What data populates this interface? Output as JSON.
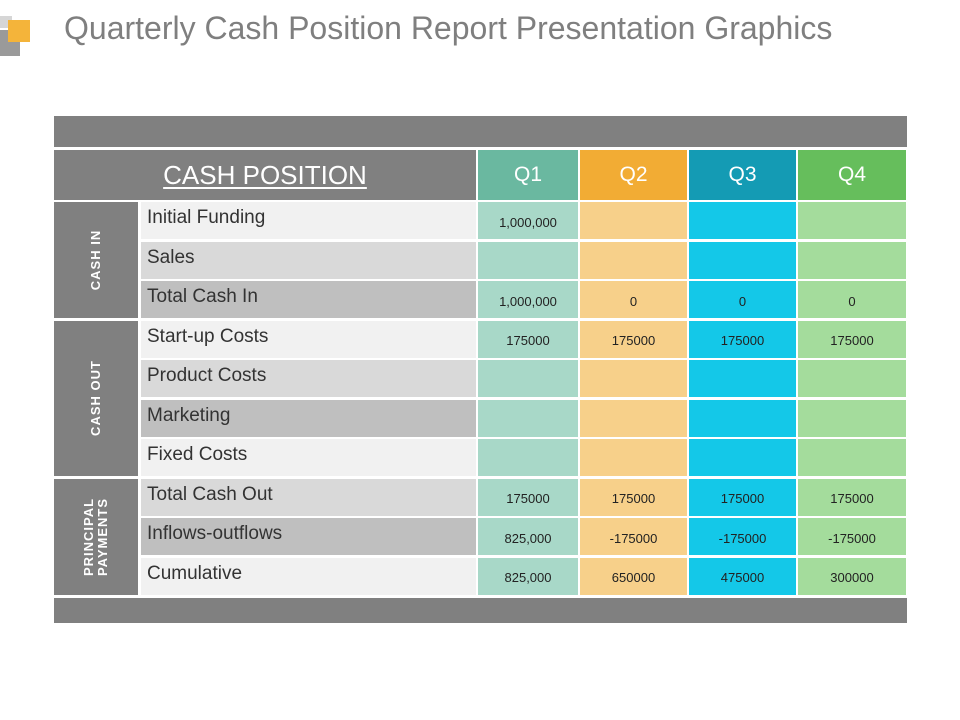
{
  "title": "Quarterly Cash Position Report Presentation Graphics",
  "colors": {
    "gray_bar": "#808080",
    "q1_header": "#6ab8a0",
    "q1_cell": "#a8d8c8",
    "q2_header": "#f2ac34",
    "q2_cell": "#f7d08a",
    "q3_header": "#149bb4",
    "q3_cell": "#14c8e8",
    "q4_header": "#66be5c",
    "q4_cell": "#a4dc9c",
    "label_light": "#f1f1f1",
    "label_mid": "#d9d9d9",
    "label_dark": "#bfbfbf"
  },
  "table": {
    "header_label": "CASH POSITION",
    "quarters": [
      "Q1",
      "Q2",
      "Q3",
      "Q4"
    ],
    "groups": [
      {
        "label_lines": [
          "CASH IN"
        ],
        "rows": 3
      },
      {
        "label_lines": [
          "CASH OUT"
        ],
        "rows": 4
      },
      {
        "label_lines": [
          "PRINCIPAL",
          "PAYMENTS"
        ],
        "rows": 3
      }
    ],
    "rows": [
      {
        "label": "Initial Funding",
        "values": [
          "1,000,000",
          "",
          "",
          ""
        ]
      },
      {
        "label": "Sales",
        "values": [
          "",
          "",
          "",
          ""
        ]
      },
      {
        "label": "Total Cash In",
        "values": [
          "1,000,000",
          "0",
          "0",
          "0"
        ]
      },
      {
        "label": "Start-up Costs",
        "values": [
          "175000",
          "175000",
          "175000",
          "175000"
        ]
      },
      {
        "label": "Product Costs",
        "values": [
          "",
          "",
          "",
          ""
        ]
      },
      {
        "label": "Marketing",
        "values": [
          "",
          "",
          "",
          ""
        ]
      },
      {
        "label": "Fixed Costs",
        "values": [
          "",
          "",
          "",
          ""
        ]
      },
      {
        "label": "Total Cash Out",
        "values": [
          "175000",
          "175000",
          "175000",
          "175000"
        ]
      },
      {
        "label": "Inflows-outflows",
        "values": [
          "825,000",
          "-175000",
          "-175000",
          "-175000"
        ]
      },
      {
        "label": "Cumulative",
        "values": [
          "825,000",
          "650000",
          "475000",
          "300000"
        ]
      }
    ]
  }
}
